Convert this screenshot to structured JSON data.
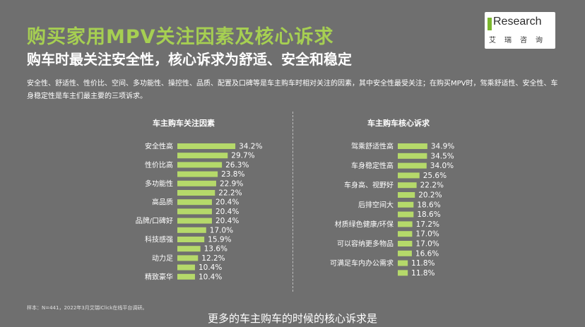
{
  "header": {
    "title": "购买家用MPV关注因素及核心诉求",
    "subtitle": "购车时最关注安全性，核心诉求为舒适、安全和稳定",
    "description": "安全性、舒适性、性价比、空间、多功能性、操控性、品质、配置及口碑等是车主购车时相对关注的因素，其中安全性最受关注；在购买MPV时，驾乘舒适性、安全性、车身稳定性是车主们最主要的三项诉求。"
  },
  "logo": {
    "text": "Research",
    "mark": "i",
    "cn": "艾瑞咨询"
  },
  "footer": {
    "note": "样本：N=441，2022年3月艾瑞iClick在线平台调研。",
    "caption": "更多的车主购车的时候的核心诉求是"
  },
  "colors": {
    "bar": "#b5d96a",
    "title": "#a6cf52",
    "background": "#6f6f6f"
  },
  "chart_data": [
    {
      "type": "bar",
      "orientation": "horizontal",
      "title": "车主购车关注因素",
      "categories": [
        "安全性高",
        "",
        "性价比高",
        "",
        "多功能性",
        "",
        "高品质",
        "",
        "品牌/口碑好",
        "",
        "科技感强",
        "",
        "动力足",
        "",
        "精致豪华"
      ],
      "values": [
        34.2,
        29.7,
        26.3,
        23.8,
        22.9,
        22.2,
        20.4,
        20.4,
        20.4,
        17.0,
        15.9,
        13.6,
        12.2,
        10.4,
        10.4
      ],
      "value_labels": [
        "34.2%",
        "29.7%",
        "26.3%",
        "23.8%",
        "22.9%",
        "22.2%",
        "20.4%",
        "20.4%",
        "20.4%",
        "17.0%",
        "15.9%",
        "13.6%",
        "12.2%",
        "10.4%",
        "10.4%"
      ],
      "unit": "%"
    },
    {
      "type": "bar",
      "orientation": "horizontal",
      "title": "车主购车核心诉求",
      "categories": [
        "驾乘舒适性高",
        "",
        "车身稳定性高",
        "",
        "车身高、视野好",
        "",
        "后排空间大",
        "",
        "材质绿色健康/环保",
        "",
        "可以容纳更多物品",
        "",
        "可满足车内办公需求",
        ""
      ],
      "values": [
        34.9,
        34.5,
        34.0,
        25.6,
        22.2,
        20.2,
        18.6,
        18.6,
        17.2,
        17.0,
        17.0,
        16.6,
        11.8,
        11.8
      ],
      "value_labels": [
        "34.9%",
        "34.5%",
        "34.0%",
        "25.6%",
        "22.2%",
        "20.2%",
        "18.6%",
        "18.6%",
        "17.2%",
        "17.0%",
        "17.0%",
        "16.6%",
        "11.8%",
        "11.8%"
      ],
      "unit": "%"
    }
  ]
}
